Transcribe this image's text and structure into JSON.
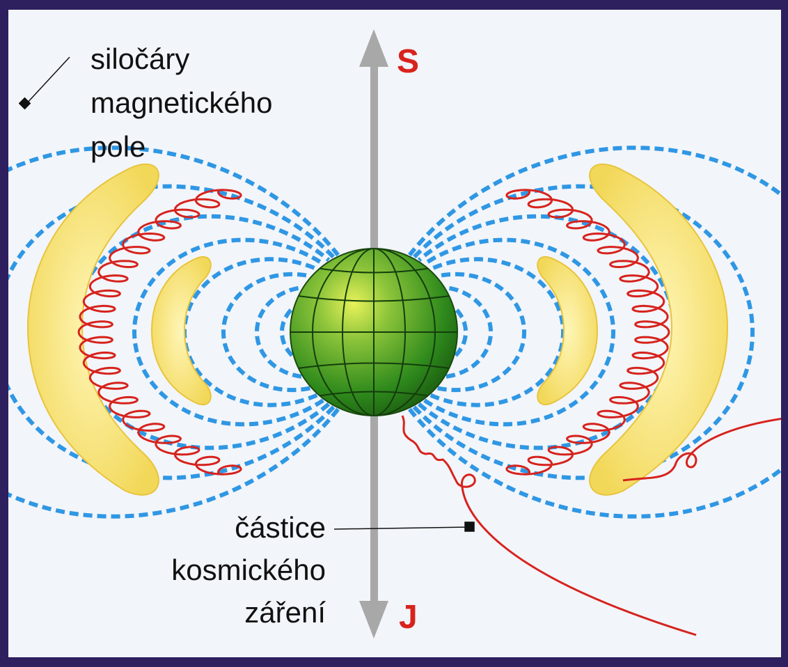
{
  "labels": {
    "field_lines": [
      "siločáry",
      "magnetického",
      "pole"
    ],
    "particle": [
      "částice",
      "kosmického",
      "záření"
    ],
    "north_pole": "S",
    "south_pole": "J"
  },
  "colors": {
    "frame": "#2e1f5e",
    "panel": "#f2f5fa",
    "field_line": "#2f97e4",
    "axis": "#a8a8a8",
    "pole_label": "#d8231d",
    "belt_fill": "#f6e27a",
    "spiral": "#d6231d",
    "earth": "#3f9a1c",
    "text": "#111111"
  },
  "icons": [
    "earth-globe-icon",
    "radiation-belt-icon",
    "axis-arrow-icon"
  ]
}
